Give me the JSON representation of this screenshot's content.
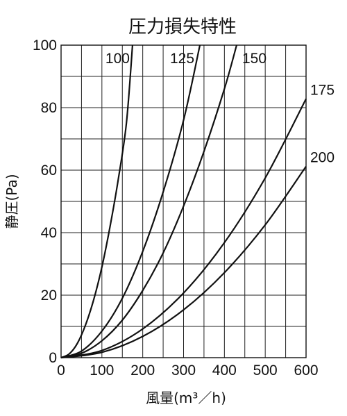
{
  "chart_data": {
    "type": "line",
    "title": "圧力損失特性",
    "xlabel": "風量(m³／h)",
    "ylabel": "静圧(Pa)",
    "xlim": [
      0,
      600
    ],
    "ylim": [
      0,
      100
    ],
    "x_ticks": [
      "0",
      "100",
      "200",
      "300",
      "400",
      "500",
      "600"
    ],
    "y_ticks": [
      "0",
      "20",
      "40",
      "60",
      "80",
      "100"
    ],
    "grid": true,
    "series": [
      {
        "name": "100",
        "x": [
          0,
          20,
          40,
          60,
          80,
          100,
          120,
          140,
          160,
          175
        ],
        "y": [
          0,
          1.2,
          4.6,
          10.5,
          18.6,
          29,
          42,
          57,
          75,
          100
        ]
      },
      {
        "name": "125",
        "x": [
          0,
          50,
          100,
          150,
          200,
          250,
          300,
          340
        ],
        "y": [
          0,
          2.1,
          8.5,
          19,
          34,
          53,
          76,
          100
        ]
      },
      {
        "name": "150",
        "x": [
          0,
          50,
          100,
          150,
          200,
          250,
          300,
          350,
          400,
          430
        ],
        "y": [
          0,
          1.4,
          5.4,
          12,
          21.5,
          33.5,
          48.5,
          66,
          86,
          100
        ]
      },
      {
        "name": "175",
        "x": [
          0,
          100,
          200,
          300,
          400,
          500,
          600
        ],
        "y": [
          0,
          2.3,
          9.2,
          20.7,
          36.8,
          57.5,
          82.8
        ]
      },
      {
        "name": "200",
        "x": [
          0,
          100,
          200,
          300,
          400,
          500,
          600
        ],
        "y": [
          0,
          1.7,
          6.8,
          15.3,
          27.2,
          42.5,
          61.2
        ]
      }
    ]
  }
}
